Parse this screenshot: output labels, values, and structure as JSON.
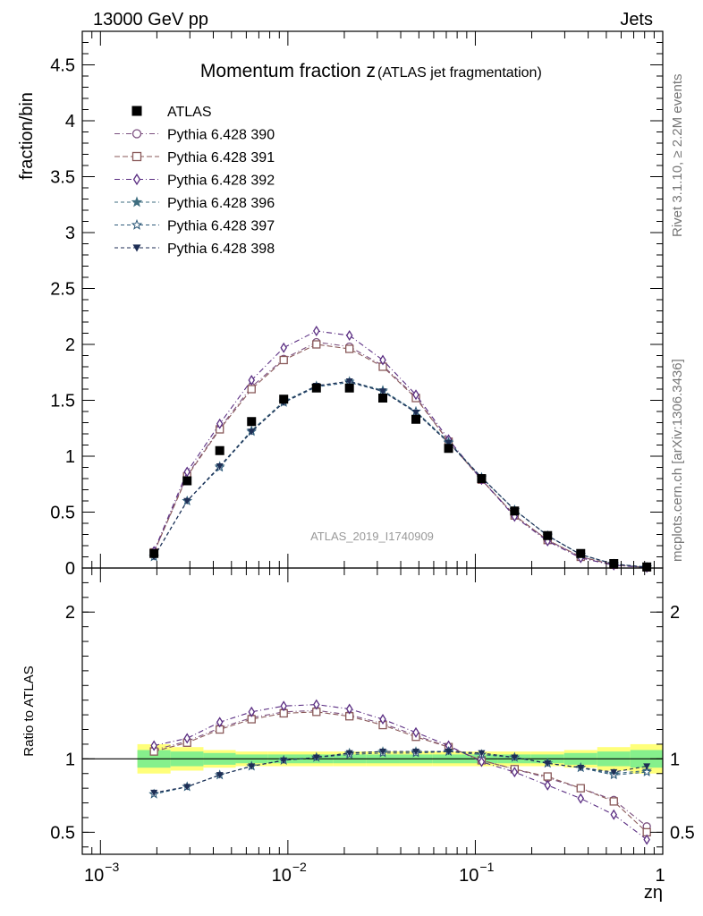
{
  "header": {
    "left": "13000 GeV pp",
    "right": "Jets"
  },
  "side_text": {
    "top": "Rivet 3.1.10, ≥ 2.2M events",
    "bottom": "mcplots.cern.ch [arXiv:1306.3436]"
  },
  "chart_data": {
    "type": "line",
    "title": "Momentum fraction z",
    "title_suffix": "(ATLAS jet fragmentation)",
    "analysis_label": "ATLAS_2019_I1740909",
    "xlabel": "zη",
    "ylabel": "fraction/bin",
    "ratio_ylabel": "Ratio to ATLAS",
    "x_scale": "log",
    "xlim": [
      0.0008,
      1.0
    ],
    "ylim": [
      0,
      4.8
    ],
    "ratio_ylim": [
      0.35,
      2.3
    ],
    "x_ticks": [
      {
        "value": 0.001,
        "base": "10",
        "exp": "−3"
      },
      {
        "value": 0.01,
        "base": "10",
        "exp": "−2"
      },
      {
        "value": 0.1,
        "base": "10",
        "exp": "−1"
      },
      {
        "value": 1,
        "base": "1",
        "exp": ""
      }
    ],
    "y_ticks": [
      "0",
      "0.5",
      "1",
      "1.5",
      "2",
      "2.5",
      "3",
      "3.5",
      "4",
      "4.5"
    ],
    "ratio_y_ticks": [
      "0.5",
      "1",
      "2"
    ],
    "legend_position": "top-left",
    "x": [
      0.00193,
      0.0029,
      0.00433,
      0.0064,
      0.0095,
      0.0142,
      0.0213,
      0.0321,
      0.0482,
      0.072,
      0.108,
      0.162,
      0.243,
      0.365,
      0.548,
      0.822
    ],
    "data": {
      "name": "ATLAS",
      "values": [
        0.13,
        0.78,
        1.05,
        1.31,
        1.51,
        1.61,
        1.61,
        1.52,
        1.33,
        1.07,
        0.8,
        0.51,
        0.29,
        0.13,
        0.04,
        0.01
      ],
      "band_inner": [
        0.06,
        0.05,
        0.04,
        0.03,
        0.03,
        0.03,
        0.03,
        0.03,
        0.03,
        0.03,
        0.03,
        0.03,
        0.03,
        0.04,
        0.05,
        0.06
      ],
      "band_outer": [
        0.1,
        0.08,
        0.06,
        0.05,
        0.05,
        0.05,
        0.05,
        0.05,
        0.05,
        0.05,
        0.05,
        0.05,
        0.05,
        0.06,
        0.08,
        0.1
      ]
    },
    "series": [
      {
        "name": "Pythia 6.428 390",
        "color": "#7b4f7f",
        "marker": "circle",
        "dash": "6,3,1,3",
        "values": [
          0.14,
          0.83,
          1.25,
          1.62,
          1.87,
          2.02,
          1.98,
          1.81,
          1.53,
          1.13,
          0.79,
          0.47,
          0.25,
          0.1,
          0.029,
          0.005
        ],
        "ratio": [
          1.06,
          1.12,
          1.21,
          1.28,
          1.32,
          1.33,
          1.3,
          1.24,
          1.16,
          1.08,
          0.99,
          0.93,
          0.87,
          0.8,
          0.72,
          0.54
        ]
      },
      {
        "name": "Pythia 6.428 391",
        "color": "#8a5a5a",
        "marker": "square",
        "dash": "6,3",
        "values": [
          0.14,
          0.82,
          1.24,
          1.6,
          1.86,
          2.0,
          1.96,
          1.8,
          1.52,
          1.13,
          0.79,
          0.47,
          0.25,
          0.1,
          0.029,
          0.005
        ],
        "ratio": [
          1.05,
          1.11,
          1.2,
          1.27,
          1.31,
          1.32,
          1.29,
          1.23,
          1.15,
          1.08,
          0.99,
          0.93,
          0.88,
          0.8,
          0.71,
          0.5
        ]
      },
      {
        "name": "Pythia 6.428 392",
        "color": "#5a2d82",
        "marker": "diamond",
        "dash": "6,3,1,3",
        "values": [
          0.15,
          0.86,
          1.29,
          1.68,
          1.97,
          2.12,
          2.08,
          1.86,
          1.55,
          1.15,
          0.79,
          0.46,
          0.24,
          0.09,
          0.025,
          0.004
        ],
        "ratio": [
          1.09,
          1.14,
          1.25,
          1.32,
          1.36,
          1.37,
          1.34,
          1.27,
          1.18,
          1.09,
          0.98,
          0.91,
          0.82,
          0.73,
          0.62,
          0.45
        ]
      },
      {
        "name": "Pythia 6.428 396",
        "color": "#3f6e80",
        "marker": "star",
        "dash": "4,3",
        "values": [
          0.1,
          0.6,
          0.91,
          1.23,
          1.49,
          1.63,
          1.67,
          1.59,
          1.4,
          1.13,
          0.81,
          0.52,
          0.29,
          0.12,
          0.036,
          0.007
        ],
        "ratio": [
          0.76,
          0.81,
          0.89,
          0.95,
          0.99,
          1.01,
          1.04,
          1.05,
          1.05,
          1.05,
          1.03,
          1.01,
          0.97,
          0.94,
          0.9,
          0.92
        ]
      },
      {
        "name": "Pythia 6.428 397",
        "color": "#2e5a7a",
        "marker": "star-open",
        "dash": "4,3",
        "values": [
          0.1,
          0.6,
          0.9,
          1.22,
          1.48,
          1.62,
          1.66,
          1.58,
          1.4,
          1.12,
          0.81,
          0.52,
          0.29,
          0.12,
          0.035,
          0.007
        ],
        "ratio": [
          0.76,
          0.81,
          0.89,
          0.95,
          0.99,
          1.01,
          1.03,
          1.04,
          1.04,
          1.05,
          1.03,
          1.01,
          0.97,
          0.94,
          0.89,
          0.91
        ]
      },
      {
        "name": "Pythia 6.428 398",
        "color": "#1e2e55",
        "marker": "triangle-down",
        "dash": "4,3",
        "values": [
          0.1,
          0.6,
          0.91,
          1.22,
          1.48,
          1.63,
          1.67,
          1.58,
          1.39,
          1.12,
          0.81,
          0.52,
          0.29,
          0.12,
          0.036,
          0.008
        ],
        "ratio": [
          0.77,
          0.81,
          0.89,
          0.95,
          0.99,
          1.01,
          1.04,
          1.05,
          1.05,
          1.05,
          1.04,
          1.01,
          0.97,
          0.94,
          0.91,
          0.95
        ]
      }
    ]
  }
}
